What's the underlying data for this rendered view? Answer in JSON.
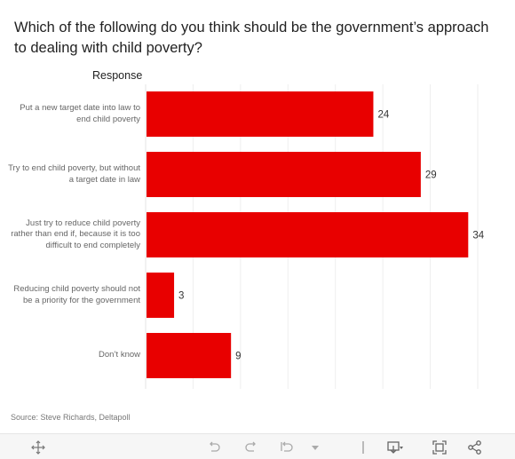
{
  "header": {
    "title": "Which of the following do you think should be the government’s approach to dealing with child poverty?",
    "column_header": "Response"
  },
  "chart_data": {
    "type": "bar",
    "orientation": "horizontal",
    "categories": [
      "Put a new target date into law to end child poverty",
      "Try to end child poverty, but without a target date in law",
      "Just try to reduce child poverty rather than end if, because it is too difficult to end completely",
      "Reducing child poverty should not be a priority for the government",
      "Don’t know"
    ],
    "values": [
      24,
      29,
      34,
      3,
      9
    ],
    "xlim": [
      0,
      35
    ],
    "grid": true,
    "bar_color": "#e80000"
  },
  "footer": {
    "source": "Source: Steve Richards, Deltapoll"
  },
  "toolbar": {
    "icons": [
      "move-icon",
      "undo-icon",
      "redo-icon",
      "revert-icon",
      "pause-icon",
      "download-icon",
      "fullscreen-icon",
      "share-icon"
    ]
  }
}
